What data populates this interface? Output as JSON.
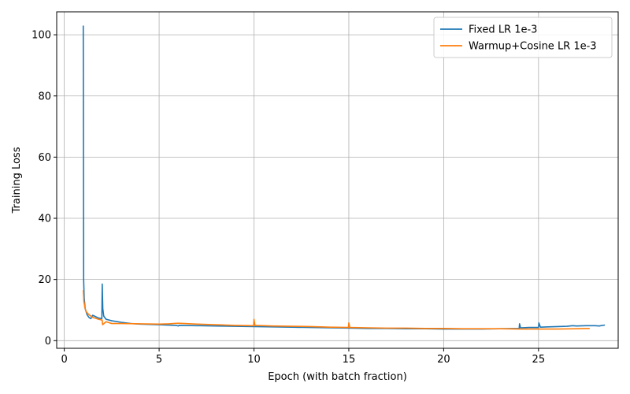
{
  "chart_data": {
    "type": "line",
    "xlabel": "Epoch (with batch fraction)",
    "ylabel": "Training Loss",
    "xlim": [
      -0.4,
      29.2
    ],
    "ylim": [
      -2.5,
      107.5
    ],
    "xticks": [
      0,
      5,
      10,
      15,
      20,
      25
    ],
    "yticks": [
      0,
      20,
      40,
      60,
      80,
      100
    ],
    "grid": true,
    "legend_position": "top-right",
    "series": [
      {
        "name": "Fixed LR 1e-3",
        "color": "#1f77b4",
        "x": [
          1.0,
          1.02,
          1.05,
          1.1,
          1.2,
          1.3,
          1.4,
          1.5,
          1.6,
          1.8,
          1.98,
          2.0,
          2.03,
          2.08,
          2.2,
          2.5,
          3.0,
          3.5,
          4.0,
          5.0,
          5.9,
          6.0,
          6.05,
          7.0,
          8.0,
          9.0,
          10.0,
          11.0,
          12.0,
          13.0,
          14.0,
          15.0,
          16.0,
          17.0,
          18.0,
          19.0,
          20.0,
          21.0,
          22.0,
          23.0,
          23.98,
          24.0,
          24.05,
          24.5,
          25.0,
          25.02,
          25.1,
          25.5,
          26.0,
          26.5,
          26.8,
          27.0,
          27.5,
          28.0,
          28.2,
          28.5
        ],
        "y": [
          103.0,
          20.0,
          14.0,
          10.5,
          8.5,
          7.6,
          7.2,
          8.3,
          8.0,
          7.4,
          7.2,
          18.5,
          10.5,
          8.0,
          7.0,
          6.5,
          6.0,
          5.6,
          5.4,
          5.2,
          5.0,
          4.8,
          5.0,
          4.9,
          4.8,
          4.7,
          4.6,
          4.5,
          4.4,
          4.3,
          4.2,
          4.1,
          4.0,
          4.0,
          3.9,
          3.9,
          3.8,
          3.8,
          3.8,
          3.9,
          4.0,
          5.5,
          4.2,
          4.3,
          4.3,
          5.8,
          4.4,
          4.5,
          4.6,
          4.7,
          4.9,
          4.8,
          4.9,
          4.9,
          4.8,
          5.1
        ]
      },
      {
        "name": "Warmup+Cosine LR 1e-3",
        "color": "#ff7f0e",
        "x": [
          1.0,
          1.03,
          1.08,
          1.15,
          1.3,
          1.5,
          1.8,
          2.0,
          2.02,
          2.2,
          2.5,
          3.0,
          4.0,
          5.0,
          5.5,
          6.0,
          7.0,
          8.0,
          9.0,
          9.98,
          10.0,
          10.05,
          11.0,
          12.0,
          13.0,
          14.0,
          14.98,
          15.0,
          15.05,
          16.0,
          17.0,
          18.0,
          19.0,
          20.0,
          21.0,
          22.0,
          23.0,
          24.0,
          25.0,
          26.0,
          27.0,
          27.7
        ],
        "y": [
          16.5,
          13.0,
          11.0,
          9.5,
          8.5,
          7.6,
          7.0,
          6.7,
          5.2,
          6.2,
          5.6,
          5.6,
          5.5,
          5.4,
          5.5,
          5.7,
          5.4,
          5.2,
          5.0,
          4.9,
          7.0,
          5.0,
          4.8,
          4.7,
          4.6,
          4.4,
          4.3,
          5.8,
          4.3,
          4.2,
          4.1,
          4.1,
          4.0,
          4.0,
          3.9,
          3.9,
          3.9,
          3.8,
          3.8,
          3.8,
          3.9,
          4.0
        ]
      }
    ]
  }
}
